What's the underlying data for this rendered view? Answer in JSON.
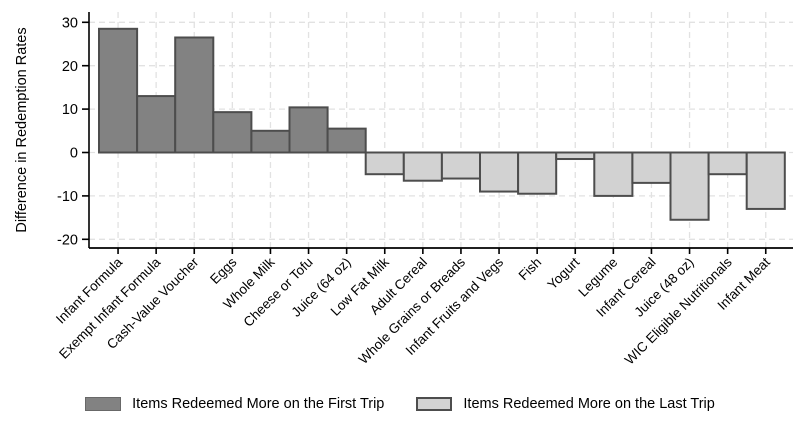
{
  "figure": {
    "background": "#ffffff",
    "title": ""
  },
  "chart_data": {
    "type": "bar",
    "title": "",
    "xlabel": "",
    "ylabel": "Difference in Redemption Rates",
    "ylim": [
      -20,
      30
    ],
    "yticks": [
      30,
      20,
      10,
      0,
      -10,
      -20
    ],
    "grid": "dashed horizontal and vertical gridlines",
    "legend_position": "bottom",
    "categories": [
      "Infant Formula",
      "Exempt Infant Formula",
      "Cash-Value Voucher",
      "Eggs",
      "Whole Milk",
      "Cheese or Tofu",
      "Juice (64 oz)",
      "Low Fat Milk",
      "Adult Cereal",
      "Whole Grains or Breads",
      "Infant Fruits and Vegs",
      "Fish",
      "Yogurt",
      "Legume",
      "Infant Cereal",
      "Juice (48 oz)",
      "WIC Eligible Nutritionals",
      "Infant Meat"
    ],
    "values": [
      28.5,
      13,
      26.5,
      9.3,
      5,
      10.4,
      5.5,
      -5,
      -6.5,
      -6,
      -9,
      -9.5,
      -1.5,
      -10,
      -7,
      -15.5,
      -5,
      -13
    ],
    "series_meaning": {
      "positive": "Items Redeemed More on the First Trip",
      "negative": "Items Redeemed More on the Last Trip"
    },
    "colors": {
      "positive_fill": "#828282",
      "negative_fill": "#d2d2d2",
      "bar_border": "#4d4d4d",
      "grid": "#e2e2e2",
      "axis": "#000000"
    },
    "legend": [
      {
        "label": "Items Redeemed More on the First Trip",
        "color": "#828282"
      },
      {
        "label": "Items Redeemed More on the Last Trip",
        "color": "#d2d2d2"
      }
    ]
  }
}
